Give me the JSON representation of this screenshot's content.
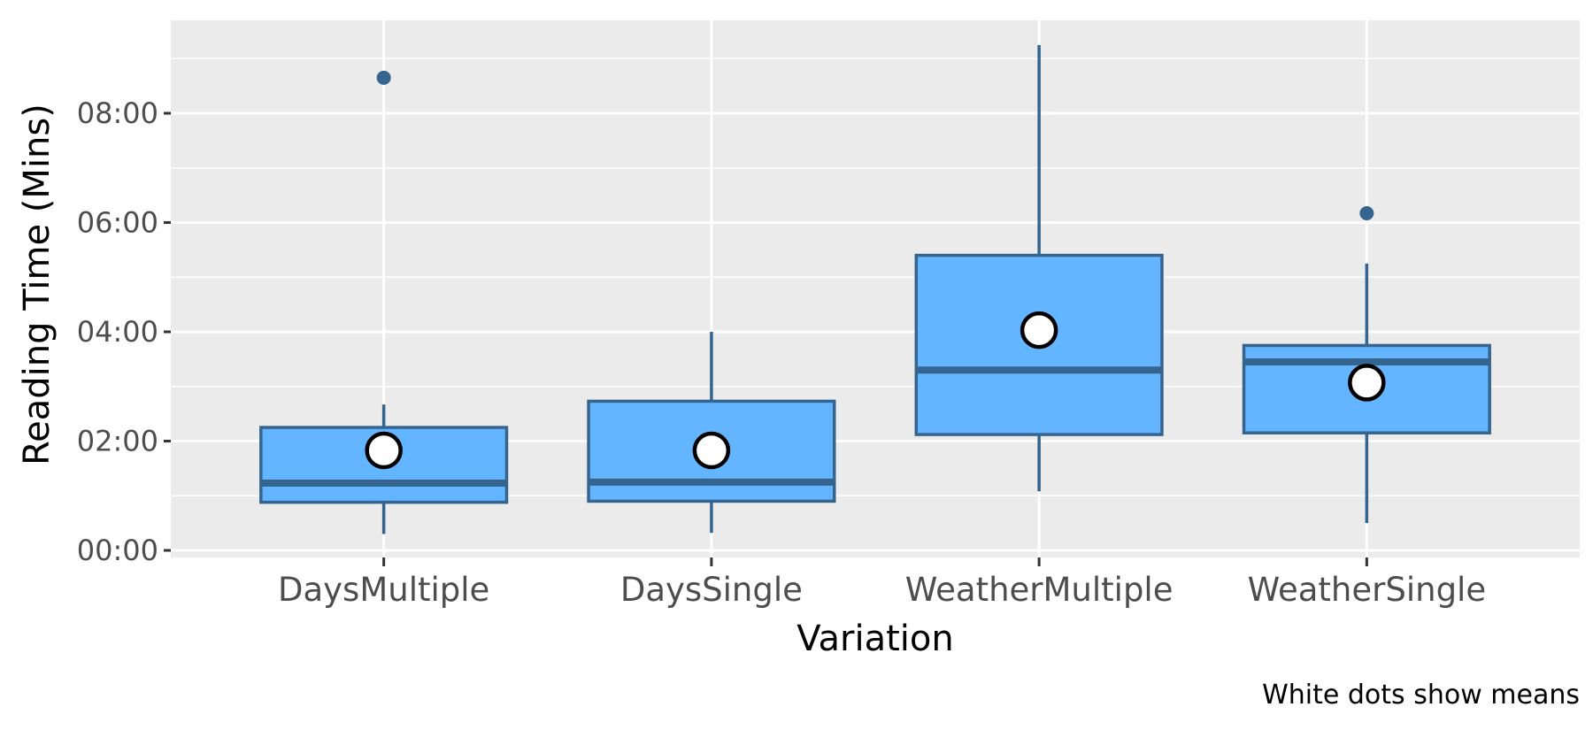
{
  "chart_data": {
    "type": "boxplot",
    "xlabel": "Variation",
    "ylabel": "Reading Time (Mins)",
    "caption": "White dots show means",
    "yticks": [
      {
        "value": 0,
        "label": "00:00"
      },
      {
        "value": 2,
        "label": "02:00"
      },
      {
        "value": 4,
        "label": "04:00"
      },
      {
        "value": 6,
        "label": "06:00"
      },
      {
        "value": 8,
        "label": "08:00"
      }
    ],
    "ylim": [
      -0.15,
      9.7
    ],
    "grid": true,
    "categories": [
      "DaysMultiple",
      "DaysSingle",
      "WeatherMultiple",
      "WeatherSingle"
    ],
    "boxes": [
      {
        "whisker_low": 0.3,
        "q1": 0.88,
        "median": 1.23,
        "q3": 2.25,
        "whisker_high": 2.67,
        "mean": 1.83,
        "outliers": [
          8.65
        ]
      },
      {
        "whisker_low": 0.32,
        "q1": 0.9,
        "median": 1.25,
        "q3": 2.73,
        "whisker_high": 4.0,
        "mean": 1.83,
        "outliers": []
      },
      {
        "whisker_low": 1.08,
        "q1": 2.12,
        "median": 3.3,
        "q3": 5.4,
        "whisker_high": 9.25,
        "mean": 4.03,
        "outliers": []
      },
      {
        "whisker_low": 0.5,
        "q1": 2.15,
        "median": 3.45,
        "q3": 3.75,
        "whisker_high": 5.25,
        "mean": 3.07,
        "outliers": [
          6.17
        ]
      }
    ],
    "colors": {
      "panel": "#ebebeb",
      "grid": "#ffffff",
      "box_fill": "#63b5ff",
      "box_line": "#35658f",
      "mean_fill": "#ffffff",
      "mean_stroke": "#000000"
    }
  }
}
